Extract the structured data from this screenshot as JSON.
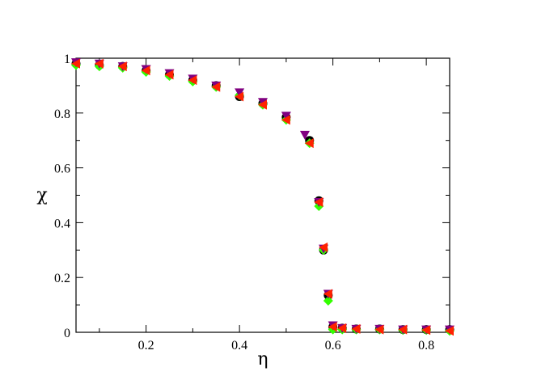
{
  "chart_data": {
    "type": "scatter",
    "title": "",
    "xlabel": "η",
    "ylabel": "χ",
    "xlim": [
      0.05,
      0.85
    ],
    "ylim": [
      0,
      1
    ],
    "x_ticks": [
      0.2,
      0.4,
      0.6,
      0.8
    ],
    "x_tick_labels": [
      "0.2",
      "0.4",
      "0.6",
      "0.8"
    ],
    "y_ticks": [
      0,
      0.2,
      0.4,
      0.6,
      0.8,
      1
    ],
    "y_tick_labels": [
      "0",
      "0.2",
      "0.4",
      "0.6",
      "0.8",
      "1"
    ],
    "grid": false,
    "legend": "none",
    "series": [
      {
        "marker": "circle",
        "color": "#000000",
        "points": [
          [
            0.05,
            0.98
          ],
          [
            0.1,
            0.975
          ],
          [
            0.15,
            0.97
          ],
          [
            0.2,
            0.955
          ],
          [
            0.25,
            0.94
          ],
          [
            0.3,
            0.92
          ],
          [
            0.35,
            0.9
          ],
          [
            0.4,
            0.86
          ],
          [
            0.45,
            0.835
          ],
          [
            0.5,
            0.785
          ],
          [
            0.55,
            0.7
          ],
          [
            0.57,
            0.48
          ],
          [
            0.58,
            0.3
          ],
          [
            0.59,
            0.135
          ],
          [
            0.6,
            0.02
          ],
          [
            0.62,
            0.015
          ],
          [
            0.65,
            0.012
          ],
          [
            0.7,
            0.012
          ],
          [
            0.75,
            0.01
          ],
          [
            0.8,
            0.01
          ],
          [
            0.85,
            0.01
          ]
        ]
      },
      {
        "marker": "diamond",
        "color": "#33ff00",
        "points": [
          [
            0.05,
            0.975
          ],
          [
            0.1,
            0.97
          ],
          [
            0.15,
            0.965
          ],
          [
            0.2,
            0.95
          ],
          [
            0.25,
            0.935
          ],
          [
            0.3,
            0.915
          ],
          [
            0.35,
            0.895
          ],
          [
            0.4,
            0.865
          ],
          [
            0.45,
            0.83
          ],
          [
            0.5,
            0.775
          ],
          [
            0.55,
            0.69
          ],
          [
            0.57,
            0.46
          ],
          [
            0.58,
            0.3
          ],
          [
            0.59,
            0.115
          ],
          [
            0.6,
            0.01
          ],
          [
            0.62,
            0.01
          ],
          [
            0.65,
            0.01
          ],
          [
            0.7,
            0.01
          ],
          [
            0.75,
            0.008
          ],
          [
            0.8,
            0.008
          ],
          [
            0.85,
            0.005
          ]
        ]
      },
      {
        "marker": "triangle-down",
        "color": "#800080",
        "points": [
          [
            0.05,
            0.985
          ],
          [
            0.1,
            0.98
          ],
          [
            0.15,
            0.97
          ],
          [
            0.2,
            0.96
          ],
          [
            0.25,
            0.945
          ],
          [
            0.3,
            0.925
          ],
          [
            0.35,
            0.9
          ],
          [
            0.4,
            0.875
          ],
          [
            0.45,
            0.84
          ],
          [
            0.5,
            0.79
          ],
          [
            0.54,
            0.72
          ],
          [
            0.57,
            0.475
          ],
          [
            0.58,
            0.305
          ],
          [
            0.59,
            0.14
          ],
          [
            0.6,
            0.025
          ],
          [
            0.62,
            0.015
          ],
          [
            0.65,
            0.012
          ],
          [
            0.7,
            0.012
          ],
          [
            0.75,
            0.01
          ],
          [
            0.8,
            0.01
          ],
          [
            0.85,
            0.01
          ]
        ]
      },
      {
        "marker": "triangle-left",
        "color": "#ff2200",
        "points": [
          [
            0.05,
            0.98
          ],
          [
            0.1,
            0.98
          ],
          [
            0.15,
            0.97
          ],
          [
            0.2,
            0.955
          ],
          [
            0.25,
            0.94
          ],
          [
            0.3,
            0.92
          ],
          [
            0.35,
            0.895
          ],
          [
            0.4,
            0.86
          ],
          [
            0.45,
            0.83
          ],
          [
            0.5,
            0.775
          ],
          [
            0.55,
            0.69
          ],
          [
            0.57,
            0.475
          ],
          [
            0.58,
            0.31
          ],
          [
            0.59,
            0.14
          ],
          [
            0.6,
            0.02
          ],
          [
            0.62,
            0.015
          ],
          [
            0.65,
            0.012
          ],
          [
            0.7,
            0.01
          ],
          [
            0.75,
            0.01
          ],
          [
            0.8,
            0.008
          ],
          [
            0.85,
            0.005
          ]
        ]
      }
    ]
  }
}
